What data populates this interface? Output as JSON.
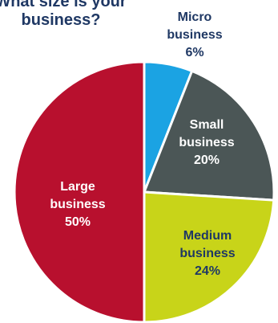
{
  "chart_data": {
    "type": "pie",
    "title": "What size is your business?",
    "title_lines": [
      "What size is your",
      "business?"
    ],
    "unit": "%",
    "slices": [
      {
        "label": "Micro business",
        "label_lines": [
          "Micro",
          "business"
        ],
        "value": 6,
        "color": "#1ba3e3",
        "text_color": "#1f3864"
      },
      {
        "label": "Small business",
        "label_lines": [
          "Small",
          "business"
        ],
        "value": 20,
        "color": "#4b5656",
        "text_color": "#ffffff"
      },
      {
        "label": "Medium business",
        "label_lines": [
          "Medium",
          "business"
        ],
        "value": 24,
        "color": "#c8d419",
        "text_color": "#1f3864"
      },
      {
        "label": "Large business",
        "label_lines": [
          "Large",
          "business"
        ],
        "value": 50,
        "color": "#b8102e",
        "text_color": "#ffffff"
      }
    ],
    "legend": "none",
    "start_angle": "top",
    "direction": "clockwise"
  }
}
